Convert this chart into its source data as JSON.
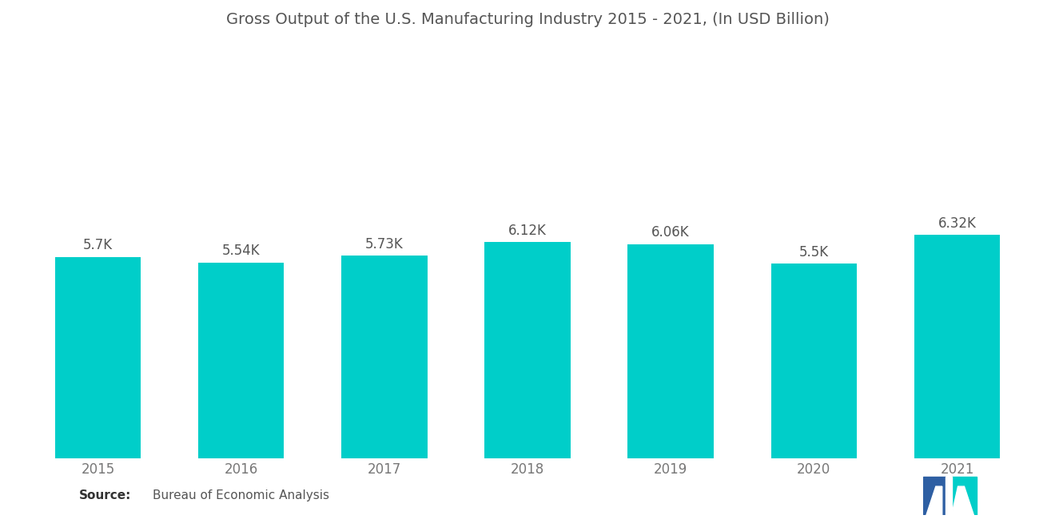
{
  "title": "Gross Output of the U.S. Manufacturing Industry 2015 - 2021, (In USD Billion)",
  "categories": [
    "2015",
    "2016",
    "2017",
    "2018",
    "2019",
    "2020",
    "2021"
  ],
  "values": [
    5700,
    5540,
    5730,
    6120,
    6060,
    5500,
    6320
  ],
  "labels": [
    "5.7K",
    "5.54K",
    "5.73K",
    "6.12K",
    "6.06K",
    "5.5K",
    "6.32K"
  ],
  "bar_color": "#00CEC9",
  "background_color": "#FFFFFF",
  "title_color": "#555555",
  "label_color": "#555555",
  "tick_color": "#777777",
  "source_text": "Bureau of Economic Analysis",
  "source_label": "Source:",
  "ylim": [
    0,
    11500
  ],
  "title_fontsize": 14,
  "label_fontsize": 12,
  "tick_fontsize": 12,
  "source_fontsize": 11,
  "bar_width": 0.6,
  "logo_left_color": "#2E5FA3",
  "logo_right_color": "#00CEC9"
}
